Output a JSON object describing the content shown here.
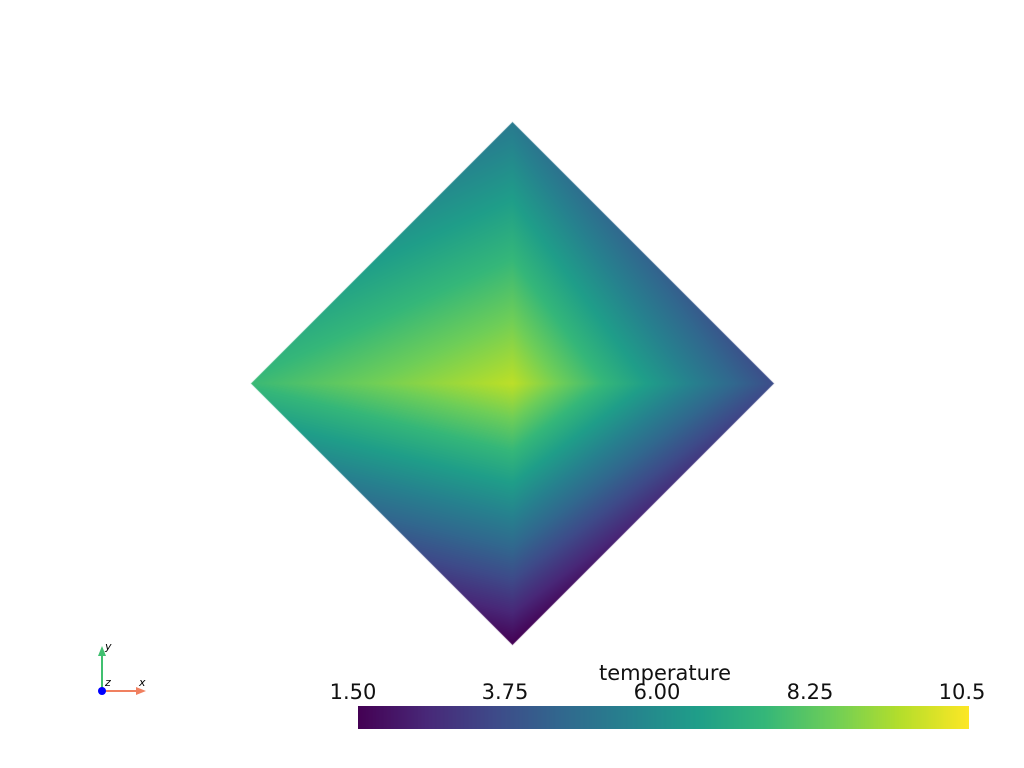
{
  "chart_data": {
    "type": "heatmap",
    "title": "",
    "scalar_name": "temperature",
    "colormap": "viridis",
    "clim": [
      1.5,
      10.5
    ],
    "colorbar_ticks": [
      "1.50",
      "3.75",
      "6.00",
      "8.25",
      "10.5"
    ],
    "colorbar_placement": "bottom",
    "field_values": {
      "top": 5.2,
      "right": 3.6,
      "bottom": 1.5,
      "left": 7.6,
      "center": 9.6
    }
  },
  "axes_widget": {
    "x": "x",
    "y": "y",
    "z": "z",
    "colors": {
      "x": "#f08060",
      "y": "#40c070",
      "z": "#0000ff"
    }
  },
  "background": "#ffffff"
}
